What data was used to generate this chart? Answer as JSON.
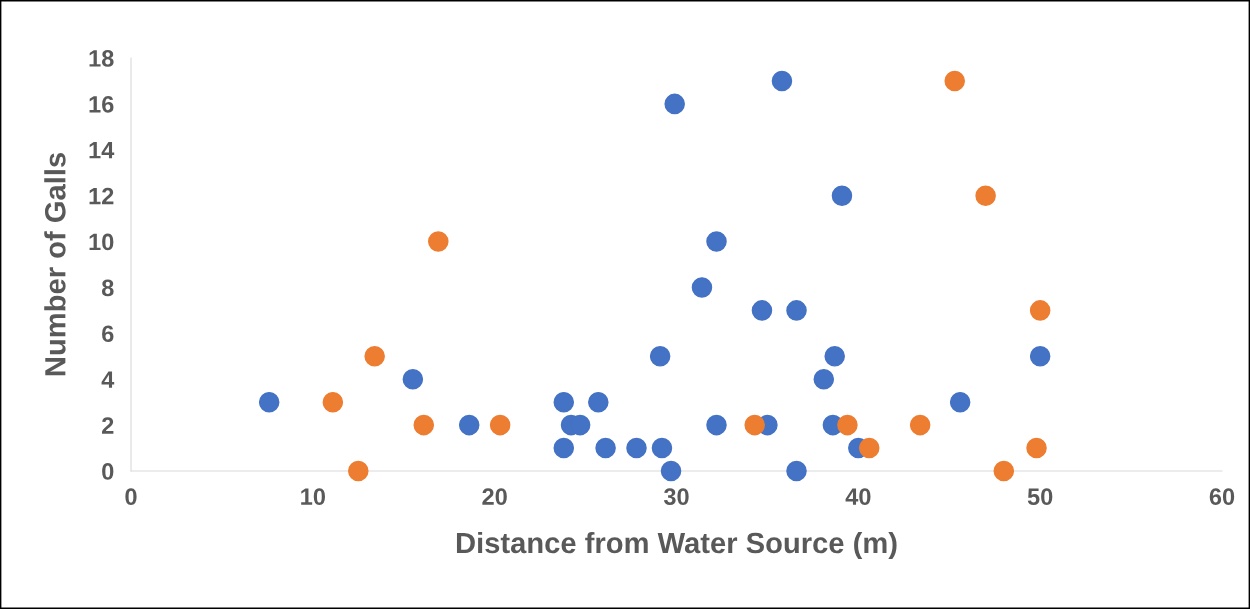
{
  "chart_data": {
    "type": "scatter",
    "xlabel": "Distance from Water Source (m)",
    "ylabel": "Number of Galls",
    "xlim": [
      0,
      60
    ],
    "xticks": [
      0,
      10,
      20,
      30,
      40,
      50,
      60
    ],
    "ylim": [
      0,
      18
    ],
    "yticks": [
      0,
      2,
      4,
      6,
      8,
      10,
      12,
      14,
      16,
      18
    ],
    "grid": false,
    "legend": false,
    "marker": "circle",
    "series": [
      {
        "color": "#4472c4",
        "x": [
          7.6,
          15.5,
          18.6,
          23.8,
          23.8,
          24.2,
          24.7,
          25.7,
          26.1,
          27.8,
          29.1,
          29.2,
          29.7,
          29.9,
          31.4,
          32.2,
          32.2,
          34.7,
          35.0,
          35.8,
          36.6,
          36.6,
          38.1,
          38.6,
          38.7,
          39.1,
          40.0,
          45.6,
          50.0
        ],
        "values": [
          3,
          4,
          2,
          3,
          1,
          2,
          2,
          3,
          1,
          1,
          5,
          1,
          0,
          16,
          8,
          10,
          2,
          7,
          2,
          17,
          7,
          0,
          4,
          2,
          5,
          12,
          1,
          3,
          5
        ]
      },
      {
        "color": "#ed7d31",
        "x": [
          11.1,
          12.5,
          13.4,
          16.1,
          16.9,
          20.3,
          34.3,
          39.4,
          40.6,
          43.4,
          45.3,
          47.0,
          48.0,
          49.8,
          50.0
        ],
        "values": [
          3,
          0,
          5,
          2,
          10,
          2,
          2,
          2,
          1,
          2,
          17,
          12,
          0,
          1,
          7
        ]
      }
    ]
  }
}
